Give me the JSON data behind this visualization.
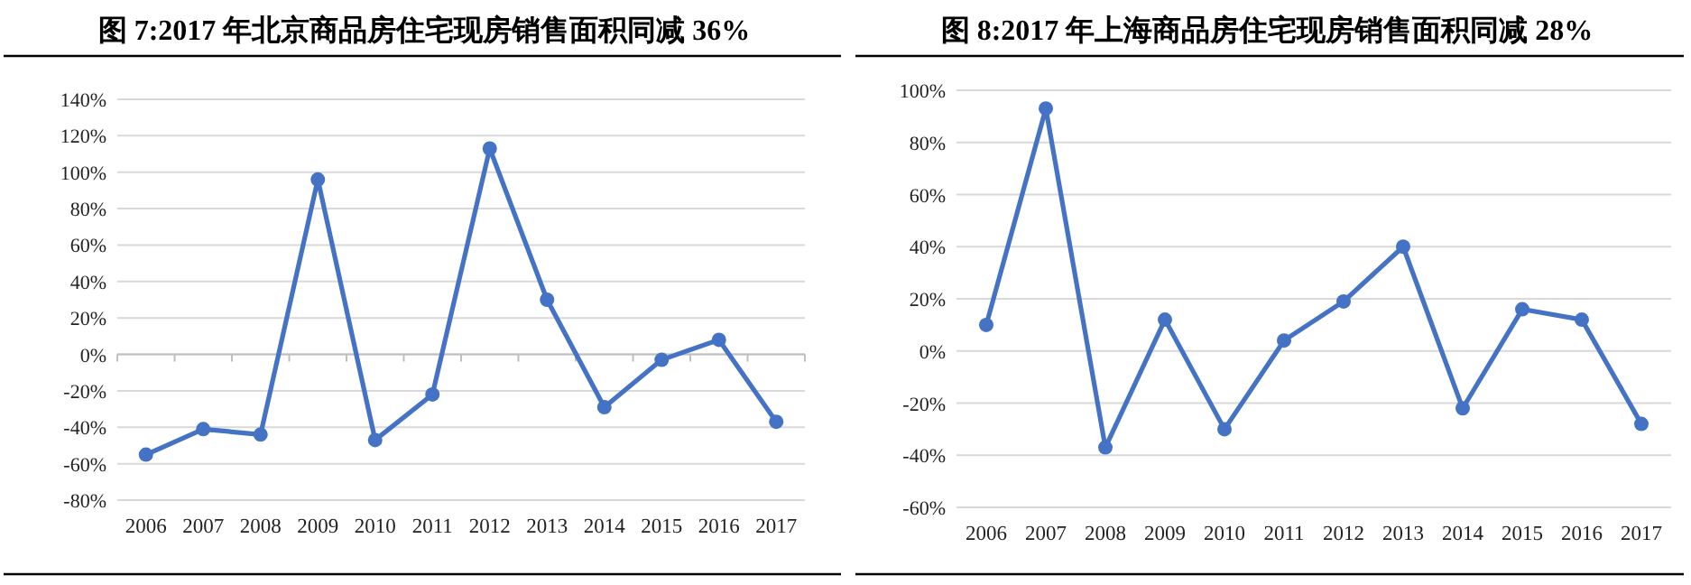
{
  "chart_data": [
    {
      "type": "line",
      "title": "图  7:2017 年北京商品房住宅现房销售面积同减 36%",
      "categories": [
        "2006",
        "2007",
        "2008",
        "2009",
        "2010",
        "2011",
        "2012",
        "2013",
        "2014",
        "2015",
        "2016",
        "2017"
      ],
      "series": [
        {
          "color": "#4472c4",
          "values": [
            -55,
            -41,
            -44,
            96,
            -47,
            -22,
            113,
            30,
            -29,
            -3,
            8,
            -37
          ]
        }
      ],
      "ylim": [
        -80,
        140
      ],
      "yticks": [
        {
          "value": -80,
          "label": "-80%"
        },
        {
          "value": -60,
          "label": "-60%"
        },
        {
          "value": -40,
          "label": "-40%"
        },
        {
          "value": -20,
          "label": "-20%"
        },
        {
          "value": 0,
          "label": "0%"
        },
        {
          "value": 20,
          "label": "20%"
        },
        {
          "value": 40,
          "label": "40%"
        },
        {
          "value": 60,
          "label": "60%"
        },
        {
          "value": 80,
          "label": "80%"
        },
        {
          "value": 100,
          "label": "100%"
        },
        {
          "value": 120,
          "label": "120%"
        },
        {
          "value": 140,
          "label": "140%"
        }
      ],
      "grid": "y",
      "marker": "circle",
      "line_style": "solid"
    },
    {
      "type": "line",
      "title": "图  8:2017 年上海商品房住宅现房销售面积同减 28%",
      "categories": [
        "2006",
        "2007",
        "2008",
        "2009",
        "2010",
        "2011",
        "2012",
        "2013",
        "2014",
        "2015",
        "2016",
        "2017"
      ],
      "series": [
        {
          "color": "#4472c4",
          "values": [
            10,
            93,
            -37,
            12,
            -30,
            4,
            19,
            40,
            -22,
            16,
            12,
            -28
          ]
        }
      ],
      "ylim": [
        -60,
        100
      ],
      "yticks": [
        {
          "value": -60,
          "label": "-60%"
        },
        {
          "value": -40,
          "label": "-40%"
        },
        {
          "value": -20,
          "label": "-20%"
        },
        {
          "value": 0,
          "label": "0%"
        },
        {
          "value": 20,
          "label": "20%"
        },
        {
          "value": 40,
          "label": "40%"
        },
        {
          "value": 60,
          "label": "60%"
        },
        {
          "value": 80,
          "label": "80%"
        },
        {
          "value": 100,
          "label": "100%"
        }
      ],
      "grid": "y",
      "marker": "circle",
      "line_style": "solid"
    }
  ]
}
